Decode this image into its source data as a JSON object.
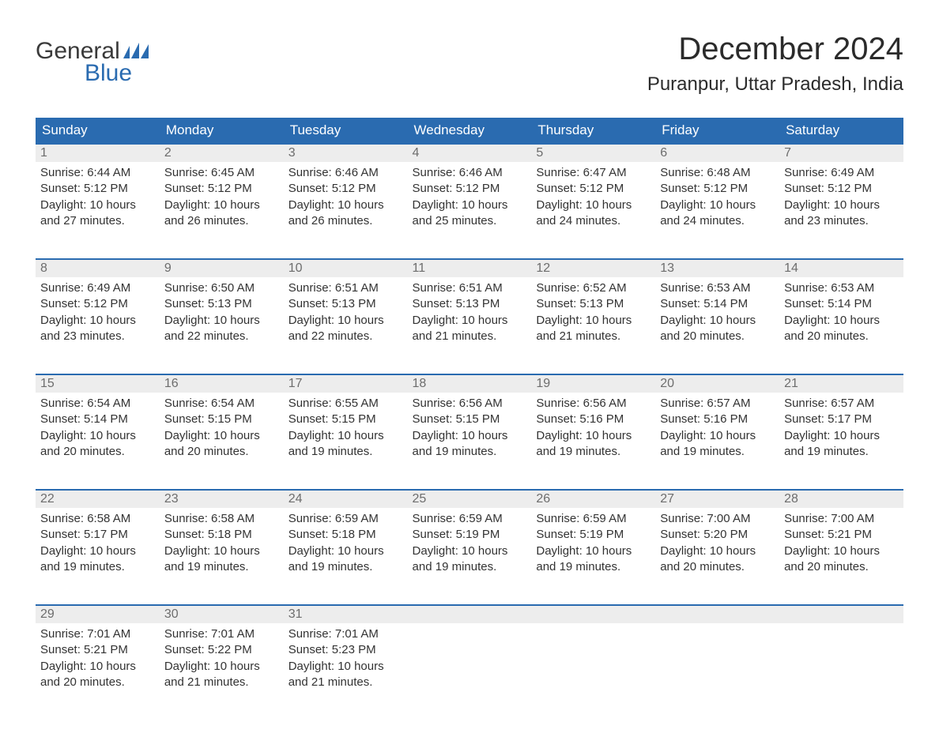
{
  "brand": {
    "top": "General",
    "bottom": "Blue",
    "logo_color": "#2a6bb0"
  },
  "title": "December 2024",
  "location": "Puranpur, Uttar Pradesh, India",
  "colors": {
    "header_bg": "#2a6bb0",
    "header_text": "#ffffff",
    "daynum_bg": "#ededed",
    "daynum_text": "#6d6d6d",
    "day_border_top": "#2a6bb0",
    "body_text": "#333333",
    "page_bg": "#ffffff"
  },
  "typography": {
    "month_title_fontsize": 40,
    "location_fontsize": 24,
    "dayheader_fontsize": 17,
    "daynum_fontsize": 16,
    "body_fontsize": 15
  },
  "weekday_labels": [
    "Sunday",
    "Monday",
    "Tuesday",
    "Wednesday",
    "Thursday",
    "Friday",
    "Saturday"
  ],
  "days": [
    {
      "n": 1,
      "sunrise": "6:44 AM",
      "sunset": "5:12 PM",
      "daylight": "10 hours and 27 minutes."
    },
    {
      "n": 2,
      "sunrise": "6:45 AM",
      "sunset": "5:12 PM",
      "daylight": "10 hours and 26 minutes."
    },
    {
      "n": 3,
      "sunrise": "6:46 AM",
      "sunset": "5:12 PM",
      "daylight": "10 hours and 26 minutes."
    },
    {
      "n": 4,
      "sunrise": "6:46 AM",
      "sunset": "5:12 PM",
      "daylight": "10 hours and 25 minutes."
    },
    {
      "n": 5,
      "sunrise": "6:47 AM",
      "sunset": "5:12 PM",
      "daylight": "10 hours and 24 minutes."
    },
    {
      "n": 6,
      "sunrise": "6:48 AM",
      "sunset": "5:12 PM",
      "daylight": "10 hours and 24 minutes."
    },
    {
      "n": 7,
      "sunrise": "6:49 AM",
      "sunset": "5:12 PM",
      "daylight": "10 hours and 23 minutes."
    },
    {
      "n": 8,
      "sunrise": "6:49 AM",
      "sunset": "5:12 PM",
      "daylight": "10 hours and 23 minutes."
    },
    {
      "n": 9,
      "sunrise": "6:50 AM",
      "sunset": "5:13 PM",
      "daylight": "10 hours and 22 minutes."
    },
    {
      "n": 10,
      "sunrise": "6:51 AM",
      "sunset": "5:13 PM",
      "daylight": "10 hours and 22 minutes."
    },
    {
      "n": 11,
      "sunrise": "6:51 AM",
      "sunset": "5:13 PM",
      "daylight": "10 hours and 21 minutes."
    },
    {
      "n": 12,
      "sunrise": "6:52 AM",
      "sunset": "5:13 PM",
      "daylight": "10 hours and 21 minutes."
    },
    {
      "n": 13,
      "sunrise": "6:53 AM",
      "sunset": "5:14 PM",
      "daylight": "10 hours and 20 minutes."
    },
    {
      "n": 14,
      "sunrise": "6:53 AM",
      "sunset": "5:14 PM",
      "daylight": "10 hours and 20 minutes."
    },
    {
      "n": 15,
      "sunrise": "6:54 AM",
      "sunset": "5:14 PM",
      "daylight": "10 hours and 20 minutes."
    },
    {
      "n": 16,
      "sunrise": "6:54 AM",
      "sunset": "5:15 PM",
      "daylight": "10 hours and 20 minutes."
    },
    {
      "n": 17,
      "sunrise": "6:55 AM",
      "sunset": "5:15 PM",
      "daylight": "10 hours and 19 minutes."
    },
    {
      "n": 18,
      "sunrise": "6:56 AM",
      "sunset": "5:15 PM",
      "daylight": "10 hours and 19 minutes."
    },
    {
      "n": 19,
      "sunrise": "6:56 AM",
      "sunset": "5:16 PM",
      "daylight": "10 hours and 19 minutes."
    },
    {
      "n": 20,
      "sunrise": "6:57 AM",
      "sunset": "5:16 PM",
      "daylight": "10 hours and 19 minutes."
    },
    {
      "n": 21,
      "sunrise": "6:57 AM",
      "sunset": "5:17 PM",
      "daylight": "10 hours and 19 minutes."
    },
    {
      "n": 22,
      "sunrise": "6:58 AM",
      "sunset": "5:17 PM",
      "daylight": "10 hours and 19 minutes."
    },
    {
      "n": 23,
      "sunrise": "6:58 AM",
      "sunset": "5:18 PM",
      "daylight": "10 hours and 19 minutes."
    },
    {
      "n": 24,
      "sunrise": "6:59 AM",
      "sunset": "5:18 PM",
      "daylight": "10 hours and 19 minutes."
    },
    {
      "n": 25,
      "sunrise": "6:59 AM",
      "sunset": "5:19 PM",
      "daylight": "10 hours and 19 minutes."
    },
    {
      "n": 26,
      "sunrise": "6:59 AM",
      "sunset": "5:19 PM",
      "daylight": "10 hours and 19 minutes."
    },
    {
      "n": 27,
      "sunrise": "7:00 AM",
      "sunset": "5:20 PM",
      "daylight": "10 hours and 20 minutes."
    },
    {
      "n": 28,
      "sunrise": "7:00 AM",
      "sunset": "5:21 PM",
      "daylight": "10 hours and 20 minutes."
    },
    {
      "n": 29,
      "sunrise": "7:01 AM",
      "sunset": "5:21 PM",
      "daylight": "10 hours and 20 minutes."
    },
    {
      "n": 30,
      "sunrise": "7:01 AM",
      "sunset": "5:22 PM",
      "daylight": "10 hours and 21 minutes."
    },
    {
      "n": 31,
      "sunrise": "7:01 AM",
      "sunset": "5:23 PM",
      "daylight": "10 hours and 21 minutes."
    }
  ],
  "labels": {
    "sunrise": "Sunrise:",
    "sunset": "Sunset:",
    "daylight": "Daylight:"
  },
  "layout": {
    "columns": 7,
    "trailing_empty_cells": 4
  }
}
